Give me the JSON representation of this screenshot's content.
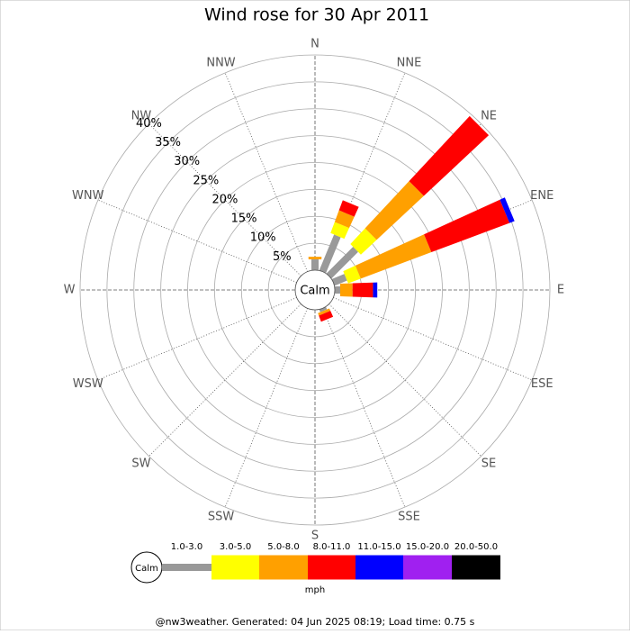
{
  "chart_data": {
    "type": "windrose",
    "title": "Wind rose for 30 Apr 2011",
    "directions": [
      "N",
      "NNE",
      "NE",
      "ENE",
      "E",
      "ESE",
      "SE",
      "SSE",
      "S",
      "SSW",
      "SW",
      "WSW",
      "W",
      "WNW",
      "NW",
      "NNW"
    ],
    "calm_label": "Calm",
    "rlim": [
      0,
      40
    ],
    "rticks": [
      {
        "value": 5,
        "label": "5%"
      },
      {
        "value": 10,
        "label": "10%"
      },
      {
        "value": 15,
        "label": "15%"
      },
      {
        "value": 20,
        "label": "20%"
      },
      {
        "value": 25,
        "label": "25%"
      },
      {
        "value": 30,
        "label": "30%"
      },
      {
        "value": 35,
        "label": "35%"
      },
      {
        "value": 40,
        "label": "40%"
      }
    ],
    "series": [
      {
        "name": "1.0-3.0",
        "color": "#999999",
        "values": [
          2,
          7.2,
          7,
          2.5,
          1,
          0,
          0,
          0.5,
          0,
          0,
          0,
          0,
          0,
          0,
          0,
          0
        ]
      },
      {
        "name": "3.0-5.0",
        "color": "#ffff00",
        "values": [
          0,
          2.2,
          4,
          2.5,
          0,
          0,
          0,
          0,
          0,
          0,
          0,
          0,
          0,
          0,
          0,
          0
        ]
      },
      {
        "name": "5.0-8.0",
        "color": "#ffa000",
        "values": [
          0.5,
          2.3,
          12,
          14,
          2.3,
          0,
          0,
          0.5,
          0,
          0,
          0,
          0,
          0,
          0,
          0,
          0
        ]
      },
      {
        "name": "8.0-11.0",
        "color": "#ff0000",
        "values": [
          0,
          2,
          16.5,
          15.5,
          3.8,
          0,
          0,
          1.2,
          0,
          0,
          0,
          0,
          0,
          0,
          0,
          0
        ]
      },
      {
        "name": "11.0-15.0",
        "color": "#0000ff",
        "values": [
          0,
          0,
          0,
          1,
          0.8,
          0,
          0,
          0,
          0,
          0,
          0,
          0,
          0,
          0,
          0,
          0
        ]
      },
      {
        "name": "15.0-20.0",
        "color": "#a020f0",
        "values": [
          0,
          0,
          0,
          0,
          0,
          0,
          0,
          0,
          0,
          0,
          0,
          0,
          0,
          0,
          0,
          0
        ]
      },
      {
        "name": "20.0-50.0",
        "color": "#000000",
        "values": [
          0,
          0,
          0,
          0,
          0,
          0,
          0,
          0,
          0,
          0,
          0,
          0,
          0,
          0,
          0,
          0
        ]
      }
    ],
    "legend_unit": "mph",
    "footer": "@nw3weather. Generated: 04 Jun 2025 08:19; Load time: 0.75 s"
  }
}
